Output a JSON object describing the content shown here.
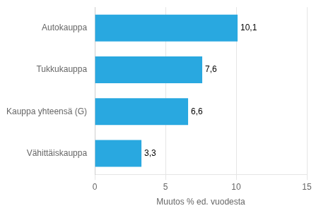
{
  "chart_data": {
    "type": "bar",
    "orientation": "horizontal",
    "categories": [
      "Vähittäiskauppa",
      "Kauppa yhteensä (G)",
      "Tukkukauppa",
      "Autokauppa"
    ],
    "values": [
      3.3,
      6.6,
      7.6,
      10.1
    ],
    "value_labels": [
      "3,3",
      "6,6",
      "7,6",
      "10,1"
    ],
    "data_labels": true,
    "color": "#29a8e0",
    "xlabel": "Muutos % ed. vuodesta",
    "xlim": [
      0,
      15
    ],
    "xticks": [
      0,
      5,
      10,
      15
    ],
    "grid": true
  }
}
